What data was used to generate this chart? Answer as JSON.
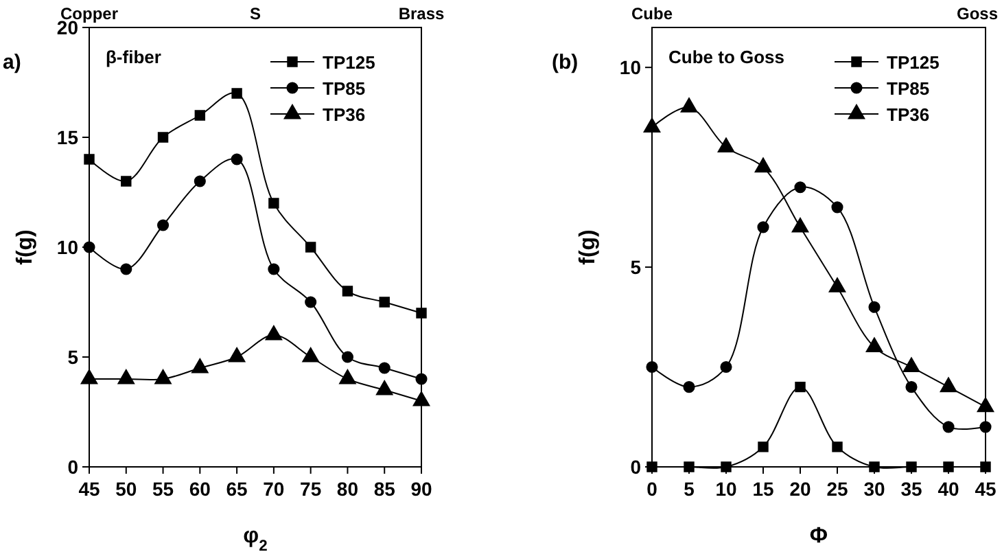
{
  "chart_data": [
    {
      "type": "line",
      "title": "a)",
      "xlabel": "φ$_{2}$",
      "ylabel": "f(g)",
      "annotations": [
        "β-fiber",
        "Copper",
        "S",
        "Brass"
      ],
      "x": [
        45,
        50,
        55,
        60,
        65,
        70,
        75,
        80,
        85,
        90
      ],
      "xlim": [
        45,
        90
      ],
      "xticks": [
        45,
        50,
        55,
        60,
        65,
        70,
        75,
        80,
        85,
        90
      ],
      "ylim": [
        0,
        20
      ],
      "yticks": [
        0,
        5,
        10,
        15,
        20
      ],
      "legend": "top right",
      "series": [
        {
          "name": "TP125",
          "color": "#000000",
          "marker": "square",
          "values": [
            14,
            13,
            15,
            16,
            17,
            12,
            10,
            8,
            7.5,
            7
          ]
        },
        {
          "name": "TP85",
          "color": "#000000",
          "marker": "circle",
          "values": [
            10,
            9,
            11,
            13,
            14,
            9,
            7.5,
            5,
            4.5,
            4
          ]
        },
        {
          "name": "TP36",
          "color": "#000000",
          "marker": "triangle",
          "values": [
            4,
            4,
            4,
            4.5,
            5,
            6,
            5,
            4,
            3.5,
            3
          ]
        }
      ]
    },
    {
      "type": "line",
      "title": "(b)",
      "xlabel": "Φ",
      "ylabel": "f(g)",
      "annotations": [
        "Cube to Goss",
        "Cube",
        "Goss"
      ],
      "x": [
        0,
        5,
        10,
        15,
        20,
        25,
        30,
        35,
        40,
        45
      ],
      "xlim": [
        0,
        45
      ],
      "xticks": [
        0,
        5,
        10,
        15,
        20,
        25,
        30,
        35,
        40,
        45
      ],
      "ylim": [
        0,
        11
      ],
      "yticks": [
        0,
        5,
        10
      ],
      "legend": "top right",
      "series": [
        {
          "name": "TP125",
          "color": "#000000",
          "marker": "square",
          "values": [
            0,
            0,
            0,
            0.5,
            2,
            0.5,
            0,
            0,
            0,
            0
          ]
        },
        {
          "name": "TP85",
          "color": "#000000",
          "marker": "circle",
          "values": [
            2.5,
            2,
            2.5,
            6,
            7,
            6.5,
            4,
            2,
            1,
            1
          ]
        },
        {
          "name": "TP36",
          "color": "#000000",
          "marker": "triangle",
          "values": [
            8.5,
            9,
            8,
            7.5,
            6,
            4.5,
            3,
            2.5,
            2,
            1.5
          ]
        }
      ]
    }
  ]
}
